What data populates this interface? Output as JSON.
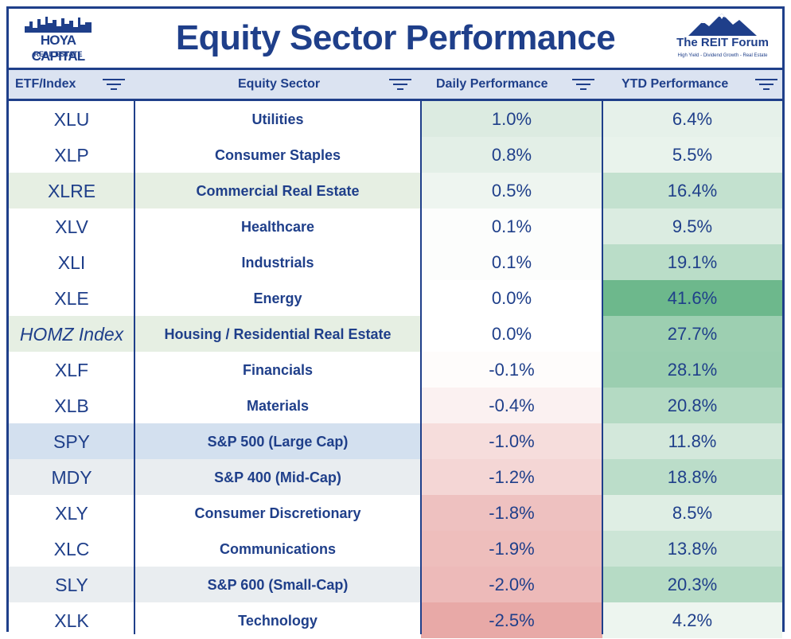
{
  "header": {
    "title": "Equity Sector Performance",
    "left_logo": {
      "brand": "HOYA CAPITAL",
      "sub": "REAL ESTATE"
    },
    "right_logo": {
      "brand": "The REIT Forum",
      "tagline": "High Yield - Dividend Growth - Real Estate"
    }
  },
  "columns": [
    {
      "label": "ETF/Index",
      "icon": "filter-icon"
    },
    {
      "label": "Equity Sector",
      "icon": "filter-icon"
    },
    {
      "label": "Daily Performance",
      "icon": "filter-icon"
    },
    {
      "label": "YTD Performance",
      "icon": "filter-icon"
    }
  ],
  "colors": {
    "brand_blue": "#1f3f8a",
    "header_bg": "#dbe3f1",
    "positive_green": "#6db88c",
    "negative_red": "#e8a9a7",
    "highlight_blue": "#d3e0ef",
    "highlight_green": "#e6efe3",
    "highlight_gray": "#e9edf0"
  },
  "rows": [
    {
      "etf": "XLU",
      "sector": "Utilities",
      "daily": "1.0%",
      "ytd": "6.4%",
      "daily_val": 1.0,
      "ytd_val": 6.4,
      "hl": ""
    },
    {
      "etf": "XLP",
      "sector": "Consumer Staples",
      "daily": "0.8%",
      "ytd": "5.5%",
      "daily_val": 0.8,
      "ytd_val": 5.5,
      "hl": ""
    },
    {
      "etf": "XLRE",
      "sector": "Commercial Real Estate",
      "daily": "0.5%",
      "ytd": "16.4%",
      "daily_val": 0.5,
      "ytd_val": 16.4,
      "hl": "green"
    },
    {
      "etf": "XLV",
      "sector": "Healthcare",
      "daily": "0.1%",
      "ytd": "9.5%",
      "daily_val": 0.1,
      "ytd_val": 9.5,
      "hl": ""
    },
    {
      "etf": "XLI",
      "sector": "Industrials",
      "daily": "0.1%",
      "ytd": "19.1%",
      "daily_val": 0.1,
      "ytd_val": 19.1,
      "hl": ""
    },
    {
      "etf": "XLE",
      "sector": "Energy",
      "daily": "0.0%",
      "ytd": "41.6%",
      "daily_val": 0.0,
      "ytd_val": 41.6,
      "hl": ""
    },
    {
      "etf": "HOMZ Index",
      "sector": "Housing / Residential Real Estate",
      "daily": "0.0%",
      "ytd": "27.7%",
      "daily_val": 0.0,
      "ytd_val": 27.7,
      "hl": "green",
      "italic": true
    },
    {
      "etf": "XLF",
      "sector": "Financials",
      "daily": "-0.1%",
      "ytd": "28.1%",
      "daily_val": -0.1,
      "ytd_val": 28.1,
      "hl": ""
    },
    {
      "etf": "XLB",
      "sector": "Materials",
      "daily": "-0.4%",
      "ytd": "20.8%",
      "daily_val": -0.4,
      "ytd_val": 20.8,
      "hl": ""
    },
    {
      "etf": "SPY",
      "sector": "S&P 500 (Large Cap)",
      "daily": "-1.0%",
      "ytd": "11.8%",
      "daily_val": -1.0,
      "ytd_val": 11.8,
      "hl": "blue"
    },
    {
      "etf": "MDY",
      "sector": "S&P 400 (Mid-Cap)",
      "daily": "-1.2%",
      "ytd": "18.8%",
      "daily_val": -1.2,
      "ytd_val": 18.8,
      "hl": "gray"
    },
    {
      "etf": "XLY",
      "sector": "Consumer Discretionary",
      "daily": "-1.8%",
      "ytd": "8.5%",
      "daily_val": -1.8,
      "ytd_val": 8.5,
      "hl": ""
    },
    {
      "etf": "XLC",
      "sector": "Communications",
      "daily": "-1.9%",
      "ytd": "13.8%",
      "daily_val": -1.9,
      "ytd_val": 13.8,
      "hl": ""
    },
    {
      "etf": "SLY",
      "sector": "S&P 600 (Small-Cap)",
      "daily": "-2.0%",
      "ytd": "20.3%",
      "daily_val": -2.0,
      "ytd_val": 20.3,
      "hl": "gray"
    },
    {
      "etf": "XLK",
      "sector": "Technology",
      "daily": "-2.5%",
      "ytd": "4.2%",
      "daily_val": -2.5,
      "ytd_val": 4.2,
      "hl": ""
    }
  ]
}
